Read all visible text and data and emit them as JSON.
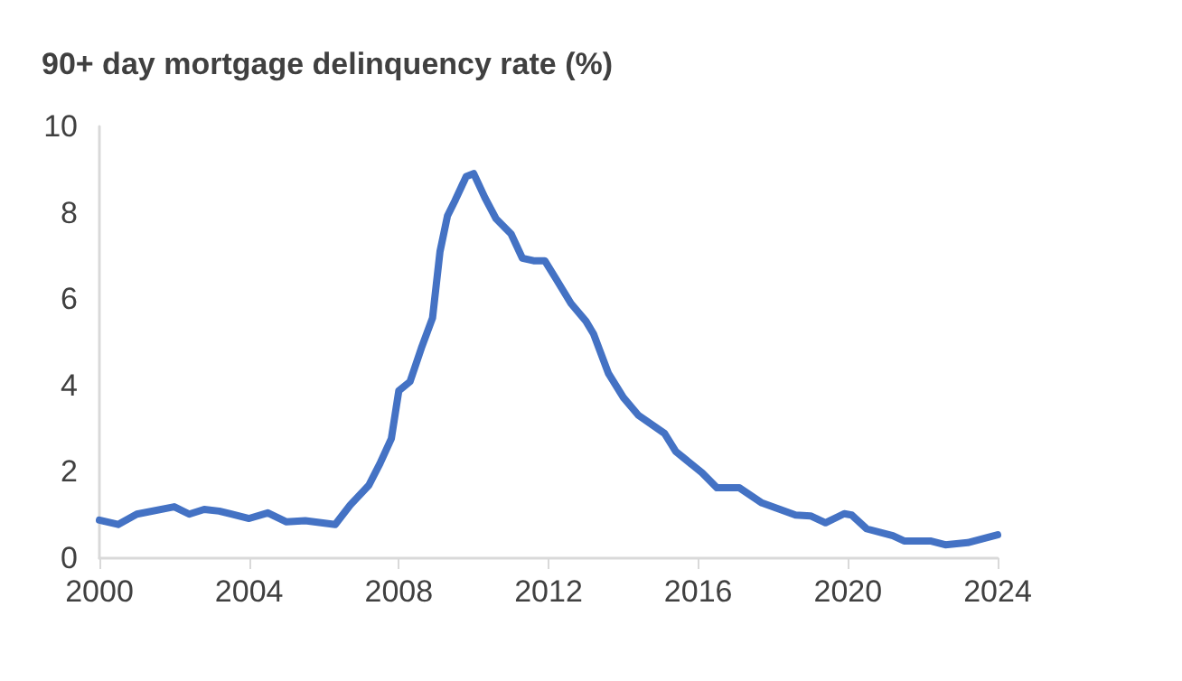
{
  "chart_data": {
    "type": "line",
    "title": "90+ day mortgage delinquency rate (%)",
    "x": [
      2000,
      2000.5,
      2001,
      2002,
      2002.4,
      2002.8,
      2003.2,
      2004,
      2004.5,
      2005,
      2005.5,
      2006.3,
      2006.7,
      2007.2,
      2007.5,
      2007.8,
      2008,
      2008.3,
      2008.6,
      2008.9,
      2009.1,
      2009.3,
      2009.5,
      2009.8,
      2010,
      2010.3,
      2010.6,
      2011,
      2011.3,
      2011.6,
      2011.9,
      2012.2,
      2012.6,
      2013,
      2013.2,
      2013.6,
      2014,
      2014.4,
      2015.1,
      2015.4,
      2016.1,
      2016.5,
      2017.1,
      2017.7,
      2018.6,
      2019,
      2019.4,
      2019.9,
      2020.1,
      2020.5,
      2021.2,
      2021.5,
      2022.2,
      2022.6,
      2023.2,
      2024
    ],
    "series": [
      {
        "color": "#4472c4",
        "values": [
          0.88,
          0.78,
          1.02,
          1.19,
          1.02,
          1.13,
          1.09,
          0.92,
          1.05,
          0.84,
          0.87,
          0.78,
          1.23,
          1.69,
          2.2,
          2.77,
          3.88,
          4.09,
          4.86,
          5.56,
          7.1,
          7.93,
          8.28,
          8.84,
          8.91,
          8.35,
          7.86,
          7.51,
          6.95,
          6.89,
          6.89,
          6.47,
          5.9,
          5.49,
          5.2,
          4.28,
          3.72,
          3.31,
          2.89,
          2.47,
          1.98,
          1.63,
          1.63,
          1.28,
          1.0,
          0.98,
          0.82,
          1.03,
          1.0,
          0.68,
          0.52,
          0.4,
          0.4,
          0.31,
          0.36,
          0.54
        ]
      }
    ],
    "xlim": [
      2000,
      2024
    ],
    "xticks": [
      2000,
      2004,
      2008,
      2012,
      2016,
      2020,
      2024
    ],
    "ylim": [
      0,
      10
    ],
    "yticks": [
      0,
      2,
      4,
      6,
      8,
      10
    ],
    "grid": false,
    "marker": "none",
    "line_style": "solid"
  }
}
